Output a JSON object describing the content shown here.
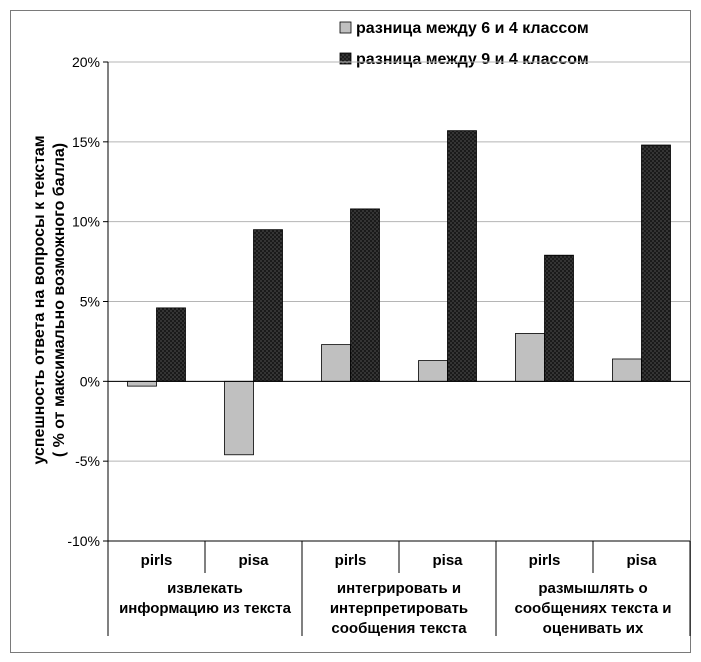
{
  "chart_data": {
    "type": "bar",
    "ylabel_lines": [
      "успешность ответа на вопросы к текстам",
      "( % от максимально возможного балла)"
    ],
    "y_ticks": [
      -10,
      -5,
      0,
      5,
      10,
      15,
      20
    ],
    "y_tick_labels": [
      "-10%",
      "-5%",
      "0%",
      "5%",
      "10%",
      "15%",
      "20%"
    ],
    "ylim": [
      -10,
      20
    ],
    "grid": true,
    "legend_position": "top-right",
    "categories": [
      "pirls",
      "pisa",
      "pirls",
      "pisa",
      "pirls",
      "pisa"
    ],
    "groups": [
      {
        "label_lines": [
          "извлекать",
          "информацию из текста"
        ],
        "span": [
          0,
          1
        ]
      },
      {
        "label_lines": [
          "интегрировать и",
          "интерпретировать",
          "сообщения текста"
        ],
        "span": [
          2,
          3
        ]
      },
      {
        "label_lines": [
          "размышлять о",
          "сообщениях текста и",
          "оценивать их"
        ],
        "span": [
          4,
          5
        ]
      }
    ],
    "series": [
      {
        "name": "разница между 6 и 4 классом",
        "values": [
          -0.3,
          -4.6,
          2.3,
          1.3,
          3.0,
          1.4
        ],
        "color": "#c0c0c0",
        "pattern": "solid"
      },
      {
        "name": "разница между 9 и 4 классом",
        "values": [
          4.6,
          9.5,
          10.8,
          15.7,
          7.9,
          14.8
        ],
        "color": "#1a1a1a",
        "pattern": "dotted"
      }
    ]
  }
}
